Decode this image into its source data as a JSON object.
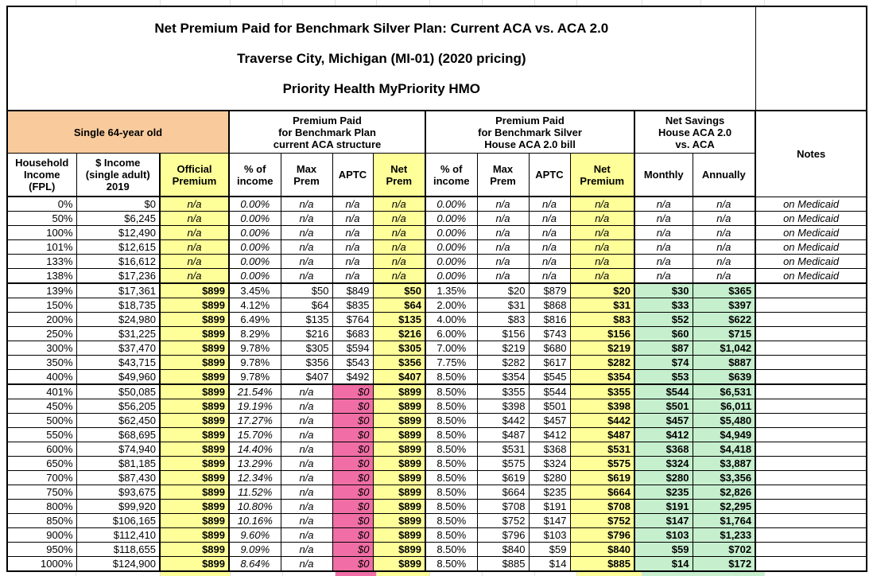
{
  "title_lines": [
    "Net Premium Paid for Benchmark Silver Plan: Current ACA vs. ACA 2.0",
    "Traverse City, Michigan (MI-01) (2020 pricing)",
    "Priority Health MyPriority HMO"
  ],
  "groups": {
    "subject": "Single 64-year old",
    "aca": "Premium Paid\nfor Benchmark Plan\ncurrent ACA structure",
    "house": "Premium Paid\nfor Benchmark Silver\nHouse ACA 2.0 bill",
    "savings": "Net Savings\nHouse ACA 2.0\nvs. ACA",
    "notes": "Notes"
  },
  "columns": {
    "fpl": "Household\nIncome\n(FPL)",
    "income": "$ Income\n(single adult)\n2019",
    "official": "Official\nPremium",
    "aca_pct": "% of\nincome",
    "aca_max": "Max\nPrem",
    "aca_aptc": "APTC",
    "aca_net": "Net\nPrem",
    "house_pct": "% of\nincome",
    "house_max": "Max\nPrem",
    "house_aptc": "APTC",
    "house_net": "Net\nPremium",
    "monthly": "Monthly",
    "annually": "Annually"
  },
  "colors": {
    "header_orange": "#F9CB9C",
    "highlight_yellow": "#FFFF99",
    "aptc_pink": "#F06EA5",
    "savings_green": "#C6EFCE"
  },
  "rows": [
    [
      "0%",
      "$0",
      "n/a",
      "0.00%",
      "n/a",
      "n/a",
      "n/a",
      "0.00%",
      "n/a",
      "n/a",
      "n/a",
      "n/a",
      "n/a",
      "on Medicaid"
    ],
    [
      "50%",
      "$6,245",
      "n/a",
      "0.00%",
      "n/a",
      "n/a",
      "n/a",
      "0.00%",
      "n/a",
      "n/a",
      "n/a",
      "n/a",
      "n/a",
      "on Medicaid"
    ],
    [
      "100%",
      "$12,490",
      "n/a",
      "0.00%",
      "n/a",
      "n/a",
      "n/a",
      "0.00%",
      "n/a",
      "n/a",
      "n/a",
      "n/a",
      "n/a",
      "on Medicaid"
    ],
    [
      "101%",
      "$12,615",
      "n/a",
      "0.00%",
      "n/a",
      "n/a",
      "n/a",
      "0.00%",
      "n/a",
      "n/a",
      "n/a",
      "n/a",
      "n/a",
      "on Medicaid"
    ],
    [
      "133%",
      "$16,612",
      "n/a",
      "0.00%",
      "n/a",
      "n/a",
      "n/a",
      "0.00%",
      "n/a",
      "n/a",
      "n/a",
      "n/a",
      "n/a",
      "on Medicaid"
    ],
    [
      "138%",
      "$17,236",
      "n/a",
      "0.00%",
      "n/a",
      "n/a",
      "n/a",
      "0.00%",
      "n/a",
      "n/a",
      "n/a",
      "n/a",
      "n/a",
      "on Medicaid"
    ],
    [
      "139%",
      "$17,361",
      "$899",
      "3.45%",
      "$50",
      "$849",
      "$50",
      "1.35%",
      "$20",
      "$879",
      "$20",
      "$30",
      "$365",
      ""
    ],
    [
      "150%",
      "$18,735",
      "$899",
      "4.12%",
      "$64",
      "$835",
      "$64",
      "2.00%",
      "$31",
      "$868",
      "$31",
      "$33",
      "$397",
      ""
    ],
    [
      "200%",
      "$24,980",
      "$899",
      "6.49%",
      "$135",
      "$764",
      "$135",
      "4.00%",
      "$83",
      "$816",
      "$83",
      "$52",
      "$622",
      ""
    ],
    [
      "250%",
      "$31,225",
      "$899",
      "8.29%",
      "$216",
      "$683",
      "$216",
      "6.00%",
      "$156",
      "$743",
      "$156",
      "$60",
      "$715",
      ""
    ],
    [
      "300%",
      "$37,470",
      "$899",
      "9.78%",
      "$305",
      "$594",
      "$305",
      "7.00%",
      "$219",
      "$680",
      "$219",
      "$87",
      "$1,042",
      ""
    ],
    [
      "350%",
      "$43,715",
      "$899",
      "9.78%",
      "$356",
      "$543",
      "$356",
      "7.75%",
      "$282",
      "$617",
      "$282",
      "$74",
      "$887",
      ""
    ],
    [
      "400%",
      "$49,960",
      "$899",
      "9.78%",
      "$407",
      "$492",
      "$407",
      "8.50%",
      "$354",
      "$545",
      "$354",
      "$53",
      "$639",
      ""
    ],
    [
      "401%",
      "$50,085",
      "$899",
      "21.54%",
      "n/a",
      "$0",
      "$899",
      "8.50%",
      "$355",
      "$544",
      "$355",
      "$544",
      "$6,531",
      ""
    ],
    [
      "450%",
      "$56,205",
      "$899",
      "19.19%",
      "n/a",
      "$0",
      "$899",
      "8.50%",
      "$398",
      "$501",
      "$398",
      "$501",
      "$6,011",
      ""
    ],
    [
      "500%",
      "$62,450",
      "$899",
      "17.27%",
      "n/a",
      "$0",
      "$899",
      "8.50%",
      "$442",
      "$457",
      "$442",
      "$457",
      "$5,480",
      ""
    ],
    [
      "550%",
      "$68,695",
      "$899",
      "15.70%",
      "n/a",
      "$0",
      "$899",
      "8.50%",
      "$487",
      "$412",
      "$487",
      "$412",
      "$4,949",
      ""
    ],
    [
      "600%",
      "$74,940",
      "$899",
      "14.40%",
      "n/a",
      "$0",
      "$899",
      "8.50%",
      "$531",
      "$368",
      "$531",
      "$368",
      "$4,418",
      ""
    ],
    [
      "650%",
      "$81,185",
      "$899",
      "13.29%",
      "n/a",
      "$0",
      "$899",
      "8.50%",
      "$575",
      "$324",
      "$575",
      "$324",
      "$3,887",
      ""
    ],
    [
      "700%",
      "$87,430",
      "$899",
      "12.34%",
      "n/a",
      "$0",
      "$899",
      "8.50%",
      "$619",
      "$280",
      "$619",
      "$280",
      "$3,356",
      ""
    ],
    [
      "750%",
      "$93,675",
      "$899",
      "11.52%",
      "n/a",
      "$0",
      "$899",
      "8.50%",
      "$664",
      "$235",
      "$664",
      "$235",
      "$2,826",
      ""
    ],
    [
      "800%",
      "$99,920",
      "$899",
      "10.80%",
      "n/a",
      "$0",
      "$899",
      "8.50%",
      "$708",
      "$191",
      "$708",
      "$191",
      "$2,295",
      ""
    ],
    [
      "850%",
      "$106,165",
      "$899",
      "10.16%",
      "n/a",
      "$0",
      "$899",
      "8.50%",
      "$752",
      "$147",
      "$752",
      "$147",
      "$1,764",
      ""
    ],
    [
      "900%",
      "$112,410",
      "$899",
      "9.60%",
      "n/a",
      "$0",
      "$899",
      "8.50%",
      "$796",
      "$103",
      "$796",
      "$103",
      "$1,233",
      ""
    ],
    [
      "950%",
      "$118,655",
      "$899",
      "9.09%",
      "n/a",
      "$0",
      "$899",
      "8.50%",
      "$840",
      "$59",
      "$840",
      "$59",
      "$702",
      ""
    ],
    [
      "1000%",
      "$124,900",
      "$899",
      "8.64%",
      "n/a",
      "$0",
      "$899",
      "8.50%",
      "$885",
      "$14",
      "$885",
      "$14",
      "$172",
      ""
    ]
  ]
}
